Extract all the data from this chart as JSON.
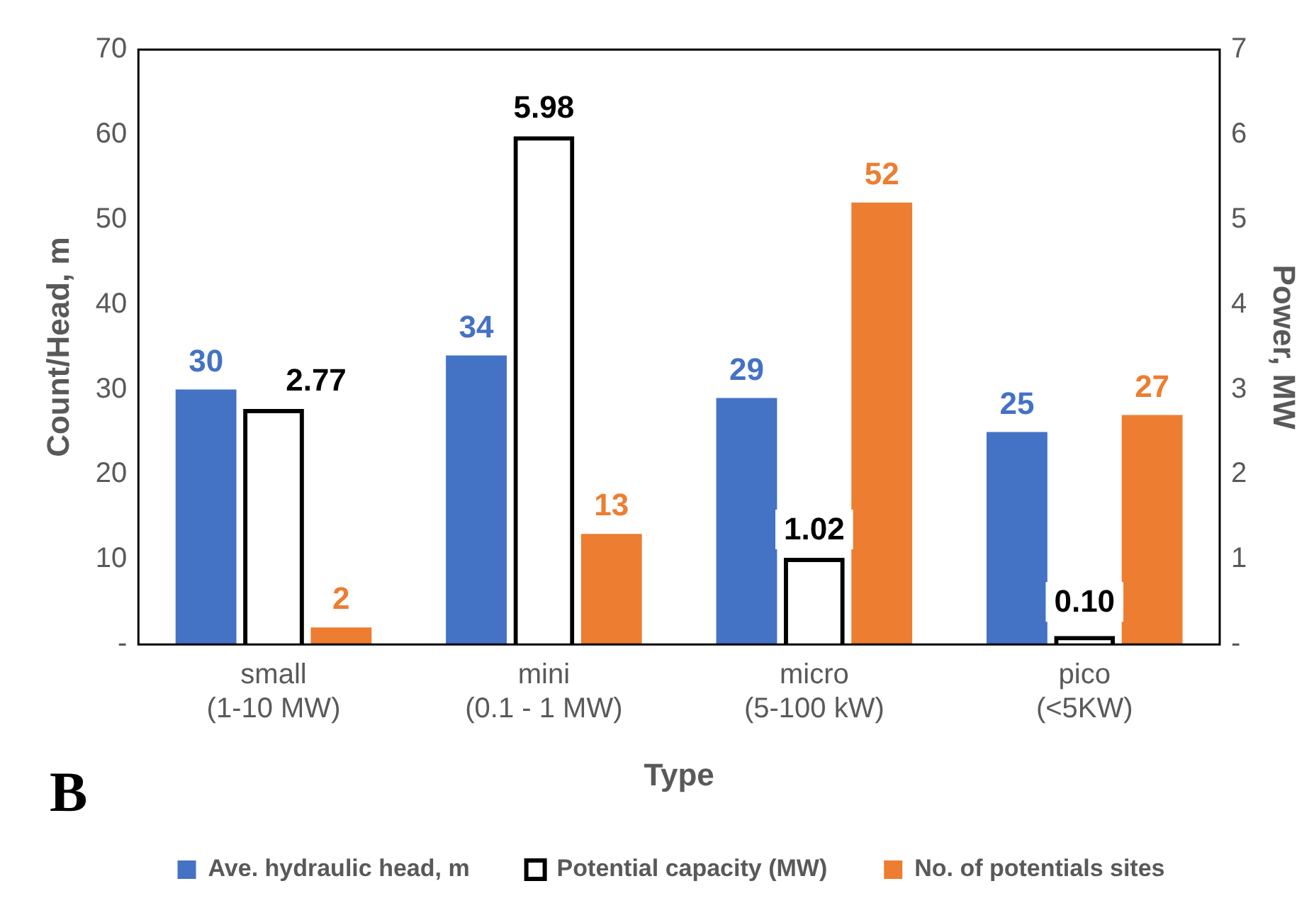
{
  "chart_data": {
    "type": "bar",
    "xlabel": "Type",
    "ylabel": "Count/Head, m",
    "y2label": "Power, MW",
    "categories": [
      "small\n(1-10 MW)",
      "mini\n(0.1 - 1 MW)",
      "micro\n(5-100 kW)",
      "pico\n(<5KW)"
    ],
    "series": [
      {
        "name": "Ave. hydraulic head, m",
        "color": "#4472c4",
        "values": [
          30,
          34,
          29,
          25
        ],
        "value_labels": [
          "30",
          "34",
          "29",
          "25"
        ]
      },
      {
        "name": "Potential capacity (MW)",
        "color": "#000000",
        "axis": "y2",
        "values": [
          2.77,
          5.98,
          1.02,
          0.1
        ],
        "value_labels": [
          "2.77",
          "5.98",
          "1.02",
          "0.10"
        ]
      },
      {
        "name": "No. of potentials sites",
        "color": "#ed7d31",
        "values": [
          2,
          13,
          52,
          27
        ],
        "value_labels": [
          "2",
          "13",
          "52",
          "27"
        ]
      }
    ],
    "ylim": [
      0,
      70
    ],
    "yticks": [
      {
        "value": 0,
        "label": "-"
      },
      10,
      20,
      30,
      40,
      50,
      60,
      70
    ],
    "y2lim": [
      0,
      7
    ],
    "y2ticks": [
      {
        "value": 0,
        "label": "-"
      },
      1,
      2,
      3,
      4,
      5,
      6,
      7
    ],
    "grid": false,
    "legend": "bottom",
    "annotations": [
      "B"
    ]
  }
}
